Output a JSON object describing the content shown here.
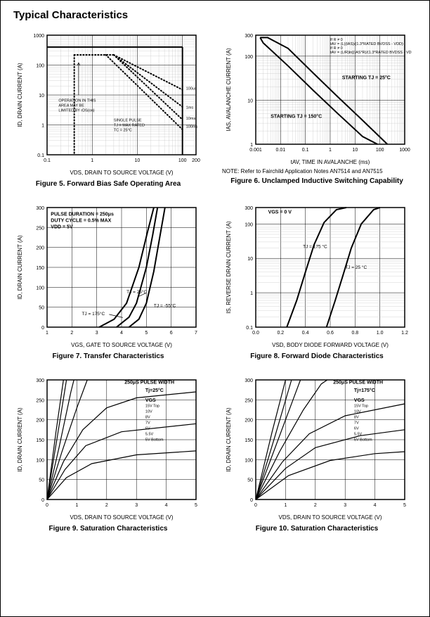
{
  "page": {
    "title": "Typical Characteristics"
  },
  "fig5": {
    "type": "log-log-chart",
    "caption": "Figure 5.  Forward Bias Safe Operating Area",
    "xlabel": "VDS, DRAIN TO SOURCE VOLTAGE (V)",
    "ylabel": "ID, DRAIN CURRENT (A)",
    "xticks": [
      "0.1",
      "1",
      "10",
      "100",
      "200"
    ],
    "yticks": [
      "0.1",
      "1",
      "10",
      "100",
      "1000"
    ],
    "annotations": {
      "op_area_l1": "OPERATION IN THIS",
      "op_area_l2": "AREA MAY BE",
      "op_area_l3": "LIMITED BY rDS(on)",
      "single_pulse_l1": "SINGLE PULSE",
      "single_pulse_l2": "TJ = MAX RATED",
      "single_pulse_l3": "TC = 25°C",
      "t_100us": "100us",
      "t_1ms": "1ms",
      "t_10ms": "10ms",
      "t_100ms": "100ms"
    },
    "top_limit_y": 400,
    "right_limit_x": 100,
    "left_dashed_x": 0.4,
    "flat_dashed_y": 220,
    "colors": {
      "grid": "#b0b0b0",
      "axis": "#000000",
      "curve": "#000000"
    }
  },
  "fig6": {
    "type": "log-log-chart",
    "caption": "Figure 6.  Unclamped Inductive Switching Capability",
    "note": "NOTE: Refer to Fairchild Application Notes AN7514 and AN7515",
    "xlabel": "tAV, TIME IN AVALANCHE (ms)",
    "ylabel": "IAS, AVALANCHE CURRENT (A)",
    "xticks": [
      "0.001",
      "0.01",
      "0.1",
      "1",
      "10",
      "100",
      "1000"
    ],
    "yticks": [
      "1",
      "10",
      "100",
      "300"
    ],
    "annotations": {
      "eq_l1": "If R ≠ 0",
      "eq_l2": "tAV = (L)(IAS)/(1.3*RATED BVDSS - VDD)",
      "eq_l3": "If R ≠ 0",
      "eq_l4": "tAV = (L/R)ln[(IAS*R)/(1.3*RATED BVDSS - VDD) +1]",
      "start25": "STARTING TJ = 25°C",
      "start150": "STARTING TJ = 150°C"
    },
    "curves": {
      "tj25": [
        [
          0.0015,
          265
        ],
        [
          0.003,
          265
        ],
        [
          0.02,
          150
        ],
        [
          0.2,
          42
        ],
        [
          2,
          12
        ],
        [
          20,
          3.5
        ],
        [
          200,
          1
        ]
      ],
      "tj150": [
        [
          0.0015,
          265
        ],
        [
          0.002,
          200
        ],
        [
          0.02,
          60
        ],
        [
          0.2,
          17
        ],
        [
          2,
          5
        ],
        [
          20,
          1.5
        ],
        [
          80,
          1
        ]
      ]
    }
  },
  "fig7": {
    "type": "linear-chart",
    "caption": "Figure 7.  Transfer Characteristics",
    "xlabel": "VGS, GATE TO SOURCE VOLTAGE (V)",
    "ylabel": "ID, DRAIN CURRENT (A)",
    "xlim": [
      1,
      7
    ],
    "xtick_step": 1,
    "ylim": [
      0,
      300
    ],
    "ytick_step": 50,
    "annotations": {
      "pulse_l1": "PULSE DURATION = 250μs",
      "pulse_l2": "DUTY CYCLE = 0.5% MAX",
      "pulse_l3": "VDD = 5V",
      "tj25": "TJ = 25°C",
      "tj175": "TJ = 175°C",
      "tjm55": "TJ = -55°C"
    },
    "curves": {
      "tjm55": [
        [
          4.3,
          0
        ],
        [
          4.7,
          20
        ],
        [
          5.0,
          60
        ],
        [
          5.3,
          140
        ],
        [
          5.55,
          230
        ],
        [
          5.75,
          300
        ]
      ],
      "tj25": [
        [
          3.8,
          0
        ],
        [
          4.3,
          25
        ],
        [
          4.6,
          60
        ],
        [
          5.0,
          150
        ],
        [
          5.25,
          230
        ],
        [
          5.45,
          300
        ]
      ],
      "tj175": [
        [
          3.1,
          0
        ],
        [
          3.7,
          20
        ],
        [
          4.2,
          60
        ],
        [
          4.7,
          150
        ],
        [
          5.05,
          240
        ],
        [
          5.3,
          300
        ]
      ]
    }
  },
  "fig8": {
    "type": "semilog-y-chart",
    "caption": "Figure 8.  Forward Diode Characteristics",
    "xlabel": "VSD, BODY DIODE FORWARD VOLTAGE (V)",
    "ylabel": "IS, REVERSE DRAIN CURRENT (A)",
    "xlim": [
      0.0,
      1.2
    ],
    "xtick_step": 0.2,
    "yticks": [
      "0.1",
      "1",
      "10",
      "100",
      "300"
    ],
    "annotations": {
      "vgs0": "VGS = 0 V",
      "tj175": "TJ = 175 °C",
      "tj25": "TJ = 25 °C"
    },
    "curves": {
      "tj175": [
        [
          0.25,
          0.1
        ],
        [
          0.33,
          0.6
        ],
        [
          0.4,
          4
        ],
        [
          0.47,
          25
        ],
        [
          0.55,
          110
        ],
        [
          0.65,
          260
        ],
        [
          0.73,
          300
        ]
      ],
      "tj25": [
        [
          0.57,
          0.1
        ],
        [
          0.64,
          0.6
        ],
        [
          0.7,
          3
        ],
        [
          0.77,
          20
        ],
        [
          0.85,
          100
        ],
        [
          0.95,
          260
        ],
        [
          1.0,
          300
        ]
      ]
    }
  },
  "fig9": {
    "type": "linear-chart",
    "caption": "Figure 9.  Saturation Characteristics",
    "xlabel": "VDS, DRAIN TO SOURCE VOLTAGE (V)",
    "ylabel": "ID, DRAIN CURRENT (A)",
    "xlim": [
      0,
      5
    ],
    "xtick_step": 1,
    "ylim": [
      0,
      300
    ],
    "ytick_step": 50,
    "annotations": {
      "pulse": "250μS PULSE WIDTH",
      "tj": "Tj=25°C",
      "vgs": "VGS",
      "v15": "15V  Top",
      "v10": "10V",
      "v8": "8V",
      "v7": "7V",
      "v6": "6V",
      "v55": "5.5V",
      "v5": "5V   Bottom"
    },
    "curves": {
      "v15": [
        [
          0,
          0
        ],
        [
          0.3,
          170
        ],
        [
          0.55,
          300
        ]
      ],
      "v10": [
        [
          0,
          0
        ],
        [
          0.35,
          160
        ],
        [
          0.65,
          300
        ]
      ],
      "v8": [
        [
          0,
          0
        ],
        [
          0.4,
          130
        ],
        [
          0.8,
          270
        ],
        [
          0.9,
          300
        ]
      ],
      "v7": [
        [
          0,
          0
        ],
        [
          0.5,
          120
        ],
        [
          1.0,
          230
        ],
        [
          1.35,
          300
        ]
      ],
      "v6": [
        [
          0,
          0
        ],
        [
          0.55,
          95
        ],
        [
          1.2,
          175
        ],
        [
          2.0,
          230
        ],
        [
          3.0,
          255
        ],
        [
          5.0,
          270
        ]
      ],
      "v55": [
        [
          0,
          0
        ],
        [
          0.6,
          75
        ],
        [
          1.3,
          135
        ],
        [
          2.5,
          170
        ],
        [
          5.0,
          190
        ]
      ],
      "v5": [
        [
          0,
          0
        ],
        [
          0.65,
          55
        ],
        [
          1.5,
          90
        ],
        [
          3.0,
          112
        ],
        [
          5.0,
          122
        ]
      ]
    }
  },
  "fig10": {
    "type": "linear-chart",
    "caption": "Figure 10.  Saturation Characteristics",
    "xlabel": "VDS, DRAIN TO SOURCE VOLTAGE (V)",
    "ylabel": "ID, DRAIN CURRENT (A)",
    "xlim": [
      0,
      5
    ],
    "xtick_step": 1,
    "ylim": [
      0,
      300
    ],
    "ytick_step": 50,
    "annotations": {
      "pulse": "250μS PULSE WIDTH",
      "tj": "Tj=175°C",
      "vgs": "VGS",
      "v15": "15V  Top",
      "v10": "10V",
      "v8": "8V",
      "v7": "7V",
      "v6": "6V",
      "v55": "5.5V",
      "v5": "5V   Bottom"
    },
    "curves": {
      "v15": [
        [
          0,
          0
        ],
        [
          0.55,
          170
        ],
        [
          1.0,
          300
        ]
      ],
      "v10": [
        [
          0,
          0
        ],
        [
          0.65,
          160
        ],
        [
          1.2,
          300
        ]
      ],
      "v8": [
        [
          0,
          0
        ],
        [
          0.7,
          140
        ],
        [
          1.3,
          260
        ],
        [
          1.5,
          300
        ]
      ],
      "v7": [
        [
          0,
          0
        ],
        [
          0.8,
          120
        ],
        [
          1.6,
          225
        ],
        [
          2.2,
          290
        ],
        [
          2.4,
          300
        ]
      ],
      "v6": [
        [
          0,
          0
        ],
        [
          0.9,
          95
        ],
        [
          1.8,
          165
        ],
        [
          3.0,
          210
        ],
        [
          5.0,
          240
        ]
      ],
      "v55": [
        [
          0,
          0
        ],
        [
          1.0,
          78
        ],
        [
          2.0,
          130
        ],
        [
          3.5,
          160
        ],
        [
          5.0,
          175
        ]
      ],
      "v5": [
        [
          0,
          0
        ],
        [
          1.1,
          60
        ],
        [
          2.5,
          98
        ],
        [
          4.0,
          115
        ],
        [
          5.0,
          120
        ]
      ]
    }
  }
}
